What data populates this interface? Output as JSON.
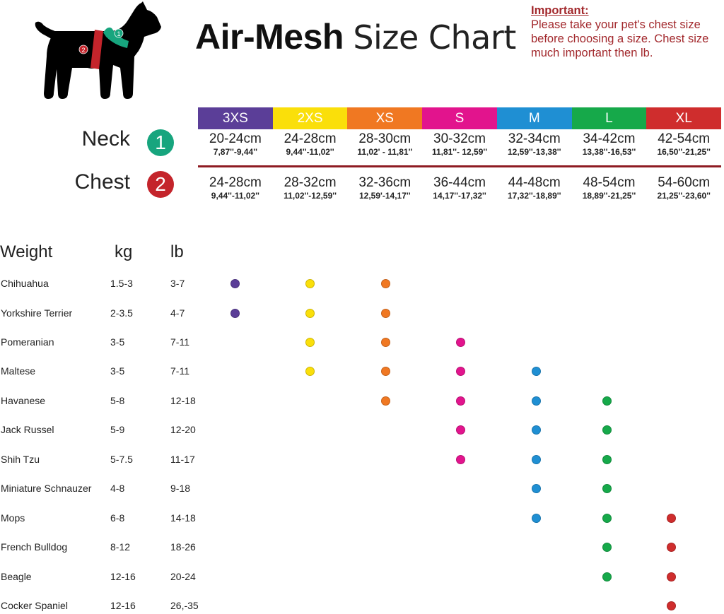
{
  "title": {
    "bold": "Air-Mesh",
    "light": "Size Chart"
  },
  "note": {
    "heading": "Important:",
    "text": "Please take your pet's chest size before choosing a size. Chest size much important then lb."
  },
  "measurements": {
    "neck": {
      "label": "Neck",
      "badge": "1",
      "color": "#17a57e"
    },
    "chest": {
      "label": "Chest",
      "badge": "2",
      "color": "#c4242b"
    }
  },
  "sizes": [
    {
      "label": "3XS",
      "color": "#5b3e98",
      "neck_cm": "20-24cm",
      "neck_in": "7,87''-9,44''",
      "chest_cm": "24-28cm",
      "chest_in": "9,44''-11,02''"
    },
    {
      "label": "2XS",
      "color": "#fadf0a",
      "neck_cm": "24-28cm",
      "neck_in": "9,44''-11,02''",
      "chest_cm": "28-32cm",
      "chest_in": "11,02''-12,59''"
    },
    {
      "label": "XS",
      "color": "#f07822",
      "neck_cm": "28-30cm",
      "neck_in": "11,02' - 11,81''",
      "chest_cm": "32-36cm",
      "chest_in": "12,59'-14,17''"
    },
    {
      "label": "S",
      "color": "#e2148d",
      "neck_cm": "30-32cm",
      "neck_in": "11,81''- 12,59''",
      "chest_cm": "36-44cm",
      "chest_in": "14,17''-17,32''"
    },
    {
      "label": "M",
      "color": "#1f8fd3",
      "neck_cm": "32-34cm",
      "neck_in": "12,59''-13,38''",
      "chest_cm": "44-48cm",
      "chest_in": "17,32''-18,89''"
    },
    {
      "label": "L",
      "color": "#16a94a",
      "neck_cm": "34-42cm",
      "neck_in": "13,38''-16,53''",
      "chest_cm": "48-54cm",
      "chest_in": "18,89''-21,25''"
    },
    {
      "label": "XL",
      "color": "#cf2d2d",
      "neck_cm": "42-54cm",
      "neck_in": "16,50''-21,25''",
      "chest_cm": "54-60cm",
      "chest_in": "21,25''-23,60''"
    }
  ],
  "table_headers": {
    "weight": "Weight",
    "kg": "kg",
    "lb": "lb"
  },
  "breeds": [
    {
      "name": "Chihuahua",
      "kg": "1.5-3",
      "lb": "3-7",
      "sizes": [
        "3XS",
        "2XS",
        "XS"
      ]
    },
    {
      "name": "Yorkshire Terrier",
      "kg": "2-3.5",
      "lb": "4-7",
      "sizes": [
        "3XS",
        "2XS",
        "XS"
      ]
    },
    {
      "name": "Pomeranian",
      "kg": "3-5",
      "lb": "7-11",
      "sizes": [
        "2XS",
        "XS",
        "S"
      ]
    },
    {
      "name": "Maltese",
      "kg": "3-5",
      "lb": "7-11",
      "sizes": [
        "2XS",
        "XS",
        "S",
        "M"
      ]
    },
    {
      "name": "Havanese",
      "kg": "5-8",
      "lb": "12-18",
      "sizes": [
        "XS",
        "S",
        "M",
        "L"
      ]
    },
    {
      "name": "Jack Russel",
      "kg": "5-9",
      "lb": "12-20",
      "sizes": [
        "S",
        "M",
        "L"
      ]
    },
    {
      "name": "Shih Tzu",
      "kg": "5-7.5",
      "lb": "11-17",
      "sizes": [
        "S",
        "M",
        "L"
      ]
    },
    {
      "name": "Miniature Schnauzer",
      "kg": "4-8",
      "lb": "9-18",
      "sizes": [
        "M",
        "L"
      ]
    },
    {
      "name": "Mops",
      "kg": "6-8",
      "lb": "14-18",
      "sizes": [
        "M",
        "L",
        "XL"
      ]
    },
    {
      "name": "French Bulldog",
      "kg": "8-12",
      "lb": "18-26",
      "sizes": [
        "L",
        "XL"
      ]
    },
    {
      "name": "Beagle",
      "kg": "12-16",
      "lb": "20-24",
      "sizes": [
        "L",
        "XL"
      ]
    },
    {
      "name": "Cocker Spaniel",
      "kg": "12-16",
      "lb": "26,-35",
      "sizes": [
        "XL"
      ]
    }
  ],
  "chart_data": {
    "type": "table",
    "title": "Air-Mesh Size Chart",
    "note": "Important: Please take your pet's chest size before choosing a size. Chest size much important then lb.",
    "columns": [
      "3XS",
      "2XS",
      "XS",
      "S",
      "M",
      "L",
      "XL"
    ],
    "column_colors": [
      "#5b3e98",
      "#fadf0a",
      "#f07822",
      "#e2148d",
      "#1f8fd3",
      "#16a94a",
      "#cf2d2d"
    ],
    "neck_cm": [
      "20-24cm",
      "24-28cm",
      "28-30cm",
      "30-32cm",
      "32-34cm",
      "34-42cm",
      "42-54cm"
    ],
    "neck_in": [
      "7,87''-9,44''",
      "9,44''-11,02''",
      "11,02' - 11,81''",
      "11,81''- 12,59''",
      "12,59''-13,38''",
      "13,38''-16,53''",
      "16,50''-21,25''"
    ],
    "chest_cm": [
      "24-28cm",
      "28-32cm",
      "32-36cm",
      "36-44cm",
      "44-48cm",
      "48-54cm",
      "54-60cm"
    ],
    "chest_in": [
      "9,44''-11,02''",
      "11,02''-12,59''",
      "12,59'-14,17''",
      "14,17''-17,32''",
      "17,32''-18,89''",
      "18,89''-21,25''",
      "21,25''-23,60''"
    ],
    "breed_headers": [
      "Weight",
      "kg",
      "lb"
    ],
    "breed_rows": [
      {
        "breed": "Chihuahua",
        "kg": "1.5-3",
        "lb": "3-7",
        "fits": [
          "3XS",
          "2XS",
          "XS"
        ]
      },
      {
        "breed": "Yorkshire Terrier",
        "kg": "2-3.5",
        "lb": "4-7",
        "fits": [
          "3XS",
          "2XS",
          "XS"
        ]
      },
      {
        "breed": "Pomeranian",
        "kg": "3-5",
        "lb": "7-11",
        "fits": [
          "2XS",
          "XS",
          "S"
        ]
      },
      {
        "breed": "Maltese",
        "kg": "3-5",
        "lb": "7-11",
        "fits": [
          "2XS",
          "XS",
          "S",
          "M"
        ]
      },
      {
        "breed": "Havanese",
        "kg": "5-8",
        "lb": "12-18",
        "fits": [
          "XS",
          "S",
          "M",
          "L"
        ]
      },
      {
        "breed": "Jack Russel",
        "kg": "5-9",
        "lb": "12-20",
        "fits": [
          "S",
          "M",
          "L"
        ]
      },
      {
        "breed": "Shih Tzu",
        "kg": "5-7.5",
        "lb": "11-17",
        "fits": [
          "S",
          "M",
          "L"
        ]
      },
      {
        "breed": "Miniature Schnauzer",
        "kg": "4-8",
        "lb": "9-18",
        "fits": [
          "M",
          "L"
        ]
      },
      {
        "breed": "Mops",
        "kg": "6-8",
        "lb": "14-18",
        "fits": [
          "M",
          "L",
          "XL"
        ]
      },
      {
        "breed": "French Bulldog",
        "kg": "8-12",
        "lb": "18-26",
        "fits": [
          "L",
          "XL"
        ]
      },
      {
        "breed": "Beagle",
        "kg": "12-16",
        "lb": "20-24",
        "fits": [
          "L",
          "XL"
        ]
      },
      {
        "breed": "Cocker Spaniel",
        "kg": "12-16",
        "lb": "26,-35",
        "fits": [
          "XL"
        ]
      }
    ]
  }
}
